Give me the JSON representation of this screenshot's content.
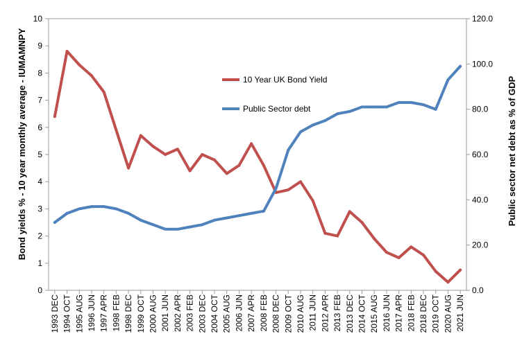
{
  "chart_data": {
    "type": "line",
    "title": "",
    "x": [
      "1993 DEC",
      "1994 OCT",
      "1995 AUG",
      "1996 JUN",
      "1997 APR",
      "1998 FEB",
      "1998 DEC",
      "1999 OCT",
      "2000 AUG",
      "2001 JUN",
      "2002 APR",
      "2003 FEB",
      "2003 DEC",
      "2004 OCT",
      "2005 AUG",
      "2006 JUN",
      "2007 APR",
      "2008 FEB",
      "2008 DEC",
      "2009 OCT",
      "2010 AUG",
      "2011 JUN",
      "2012 APR",
      "2013 FEB",
      "2013 DEC",
      "2014 OCT",
      "2015 AUG",
      "2016 JUN",
      "2017 APR",
      "2018 FEB",
      "2018 DEC",
      "2019 OCT",
      "2020 AUG",
      "2021 JUN"
    ],
    "ylabel": "Bond yields % - 10 year monthly average - IUMAMNPY",
    "y2label": "Public sector net debt as % of GDP",
    "ylim": [
      0,
      10
    ],
    "y2lim": [
      0,
      120
    ],
    "yticks": [
      "0",
      "1",
      "2",
      "3",
      "4",
      "5",
      "6",
      "7",
      "8",
      "9",
      "10"
    ],
    "y2ticks": [
      "0.0",
      "20.0",
      "40.0",
      "60.0",
      "80.0",
      "100.0",
      "120.0"
    ],
    "legend_position": "center",
    "series": [
      {
        "name": "10 Year UK Bond Yield",
        "axis": "left",
        "color": "#c0504d",
        "values": [
          6.4,
          8.8,
          8.3,
          7.9,
          7.3,
          5.9,
          4.5,
          5.7,
          5.3,
          5.0,
          5.2,
          4.4,
          5.0,
          4.8,
          4.3,
          4.6,
          5.4,
          4.6,
          3.6,
          3.7,
          4.0,
          3.3,
          2.1,
          2.0,
          2.9,
          2.5,
          1.9,
          1.4,
          1.2,
          1.6,
          1.3,
          0.7,
          0.3,
          0.75
        ]
      },
      {
        "name": "Public Sector debt",
        "axis": "right",
        "color": "#4f81bd",
        "values": [
          30,
          34,
          36,
          37,
          37,
          36,
          34,
          31,
          29,
          27,
          27,
          28,
          29,
          31,
          32,
          33,
          34,
          35,
          45,
          62,
          70,
          73,
          75,
          78,
          79,
          81,
          81,
          81,
          83,
          83,
          82,
          80,
          93,
          99
        ]
      }
    ]
  }
}
